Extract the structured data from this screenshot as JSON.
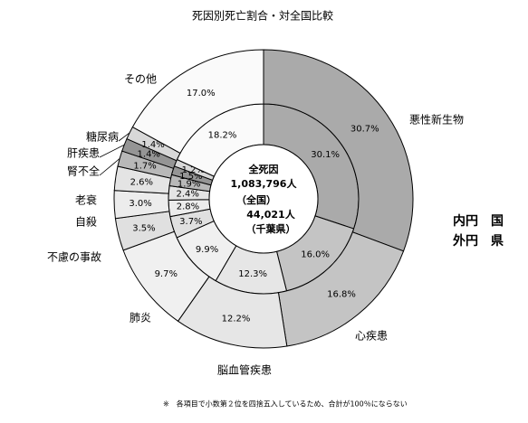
{
  "chart_data": {
    "type": "donut",
    "title": "死因別死亡割合・対全国比較",
    "categories": [
      "悪性新生物",
      "心疾患",
      "脳血管疾患",
      "肺炎",
      "不慮の事故",
      "自殺",
      "老衰",
      "腎不全",
      "肝疾患",
      "糖尿病",
      "その他"
    ],
    "colors": [
      "#aaaaaa",
      "#c4c4c4",
      "#e6e6e6",
      "#f0f0f0",
      "#e0e0e0",
      "#ececec",
      "#e4e4e4",
      "#b8b8b8",
      "#959595",
      "#d8d8d8",
      "#fafafa"
    ],
    "series": [
      {
        "name": "内円　国",
        "values": [
          30.1,
          16.0,
          12.3,
          9.9,
          3.7,
          2.8,
          2.4,
          1.9,
          1.5,
          1.2,
          18.2
        ],
        "value_labels": [
          "30.1%",
          "16.0%",
          "12.3%",
          "9.9%",
          "3.7%",
          "2.8%",
          "2.4%",
          "1.9%",
          "1.5%",
          "1.2%",
          "18.2%"
        ]
      },
      {
        "name": "外円　県",
        "values": [
          30.7,
          16.8,
          12.2,
          9.7,
          3.5,
          3.0,
          2.6,
          1.7,
          1.4,
          1.4,
          17.0
        ],
        "value_labels": [
          "30.7%",
          "16.8%",
          "12.2%",
          "9.7%",
          "3.5%",
          "3.0%",
          "2.6%",
          "1.7%",
          "1.4%",
          "1.4%",
          "17.0%"
        ]
      }
    ],
    "center_labels": [
      "全死因",
      "1,083,796人",
      "（全国）",
      "44,021人",
      "（千葉県）"
    ],
    "note": "※　各項目で小数第２位を四捨五入しているため、合計が100％にならない"
  }
}
